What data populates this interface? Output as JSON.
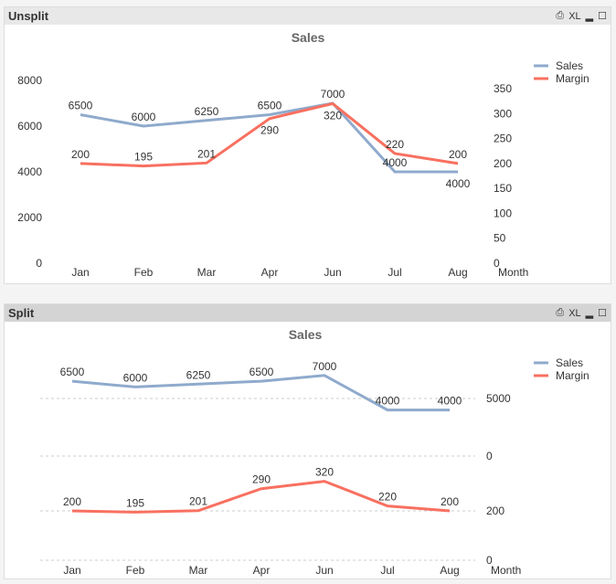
{
  "caption_icons": {
    "print": "⎙",
    "xl": "XL",
    "minimize": "▂",
    "maximize": "☐"
  },
  "colors": {
    "sales": "#8faacc",
    "margin": "#f87060",
    "caption_top": "#e8e8e8",
    "caption_bottom": "#d4d4d4"
  },
  "panels": [
    {
      "caption": "Unsplit"
    },
    {
      "caption": "Split"
    }
  ],
  "chart_data": [
    {
      "type": "line",
      "title": "Sales",
      "categories": [
        "Jan",
        "Feb",
        "Mar",
        "Apr",
        "Jun",
        "Jul",
        "Aug"
      ],
      "xlabel": "Month",
      "series": [
        {
          "name": "Sales",
          "values": [
            6500,
            6000,
            6250,
            6500,
            7000,
            4000,
            4000
          ],
          "axis": "left"
        },
        {
          "name": "Margin",
          "values": [
            200,
            195,
            201,
            290,
            320,
            220,
            200
          ],
          "axis": "right"
        }
      ],
      "left_axis": {
        "ylim": [
          0,
          8000
        ],
        "ticks": [
          "0",
          "2000",
          "4000",
          "6000",
          "8000"
        ]
      },
      "right_axis": {
        "ylim": [
          0,
          350
        ],
        "ticks": [
          "0",
          "50",
          "100",
          "150",
          "200",
          "250",
          "300",
          "350"
        ]
      },
      "legend": "top-right",
      "data_labels": true
    },
    {
      "type": "line",
      "title": "Sales",
      "categories": [
        "Jan",
        "Feb",
        "Mar",
        "Apr",
        "Jun",
        "Jul",
        "Aug"
      ],
      "xlabel": "Month",
      "series": [
        {
          "name": "Sales",
          "values": [
            6500,
            6000,
            6250,
            6500,
            7000,
            4000,
            4000
          ],
          "axis": "top-pane",
          "ticks": [
            "0",
            "5000"
          ]
        },
        {
          "name": "Margin",
          "values": [
            200,
            195,
            201,
            290,
            320,
            220,
            200
          ],
          "axis": "bottom-pane",
          "ticks": [
            "0",
            "200"
          ]
        }
      ],
      "legend": "top-right",
      "grid": true,
      "data_labels": true
    }
  ]
}
